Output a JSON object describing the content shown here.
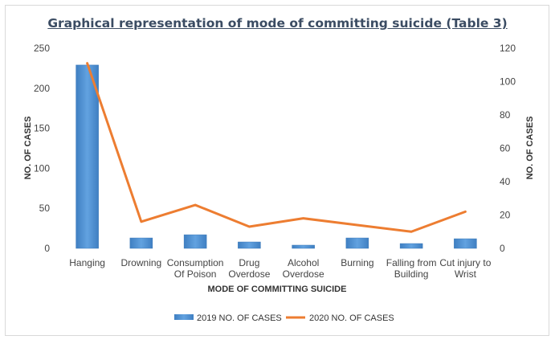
{
  "chart_data": {
    "type": "bar",
    "title": "Graphical representation of mode of committing suicide (Table 3)",
    "xlabel": "MODE OF COMMITTING SUICIDE",
    "ylabel": "NO. OF CASES",
    "y2label": "NO. OF CASES",
    "ylim": [
      0,
      250
    ],
    "y2lim": [
      0,
      120
    ],
    "yticks": [
      "0",
      "50",
      "100",
      "150",
      "200",
      "250"
    ],
    "y2ticks": [
      "0",
      "20",
      "40",
      "60",
      "80",
      "100",
      "120"
    ],
    "categories": [
      [
        "Hanging"
      ],
      [
        "Drowning"
      ],
      [
        "Consumption",
        "Of Poison"
      ],
      [
        "Drug",
        "Overdose"
      ],
      [
        "Alcohol",
        "Overdose"
      ],
      [
        "Burning"
      ],
      [
        "Falling from",
        "Building"
      ],
      [
        "Cut injury to",
        "Wrist"
      ]
    ],
    "series": [
      {
        "name": "2019 NO. OF CASES",
        "type": "bar",
        "axis": "left",
        "color": "#4a8fd0",
        "values": [
          229,
          13,
          17,
          8,
          4,
          13,
          6,
          12
        ]
      },
      {
        "name": "2020 NO. OF CASES",
        "type": "line",
        "axis": "right",
        "color": "#ed7d31",
        "values": [
          111,
          16,
          26,
          13,
          18,
          14,
          10,
          22
        ]
      }
    ],
    "legend": "bottom",
    "grid": false
  }
}
